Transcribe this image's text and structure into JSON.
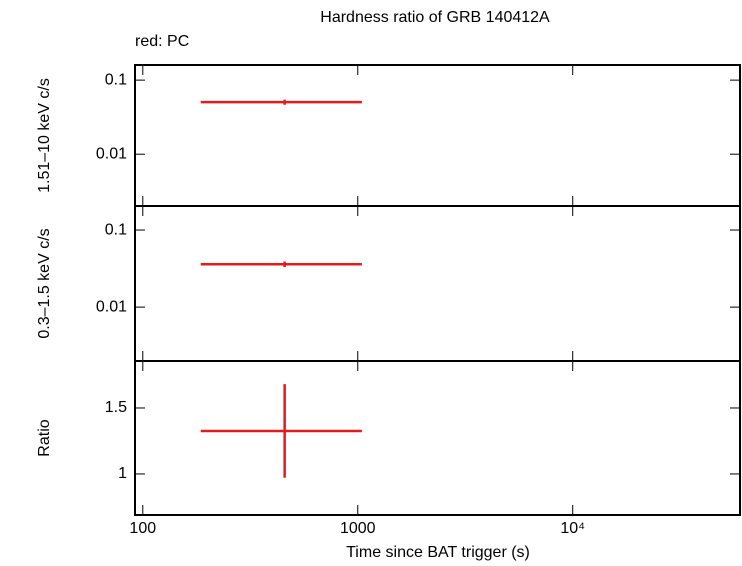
{
  "chart_data": [
    {
      "type": "errorbar",
      "title": "Hardness ratio of GRB 140412A",
      "annotation": "red: PC",
      "ylabel": "1.51–10 keV c/s",
      "x": [
        457
      ],
      "xerr": [
        [
          271,
          588
        ]
      ],
      "values": [
        0.0505
      ],
      "yerr": [
        0.004
      ],
      "color": "#e41a1c",
      "xlim": [
        92,
        60000
      ],
      "xscale": "log",
      "xticks": [
        100,
        1000,
        {
          "value": 10000,
          "label": "10⁴"
        }
      ],
      "ylim": [
        0.002,
        0.16
      ],
      "yscale": "log",
      "yticks": [
        0.1,
        0.01
      ]
    },
    {
      "type": "errorbar",
      "ylabel": "0.3–1.5 keV c/s",
      "x": [
        457
      ],
      "xerr": [
        [
          271,
          588
        ]
      ],
      "values": [
        0.036
      ],
      "yerr": [
        0.003
      ],
      "color": "#e41a1c",
      "xlim": [
        92,
        60000
      ],
      "xscale": "log",
      "xticks": [
        100,
        1000,
        {
          "value": 10000,
          "label": "10⁴"
        }
      ],
      "ylim": [
        0.002,
        0.205
      ],
      "yscale": "log",
      "yticks": [
        0.1,
        0.01
      ]
    },
    {
      "type": "errorbar",
      "ylabel": "Ratio",
      "xlabel": "Time since BAT trigger (s)",
      "x": [
        457
      ],
      "xerr": [
        [
          271,
          588
        ]
      ],
      "values": [
        1.326
      ],
      "yerr": [
        0.355
      ],
      "color": "#e41a1c",
      "xlim": [
        92,
        60000
      ],
      "xscale": "log",
      "xticks": [
        100,
        1000,
        {
          "value": 10000,
          "label": "10⁴"
        }
      ],
      "ylim": [
        0.689,
        1.856
      ],
      "yscale": "linear",
      "yticks": [
        1.5,
        1
      ]
    }
  ]
}
